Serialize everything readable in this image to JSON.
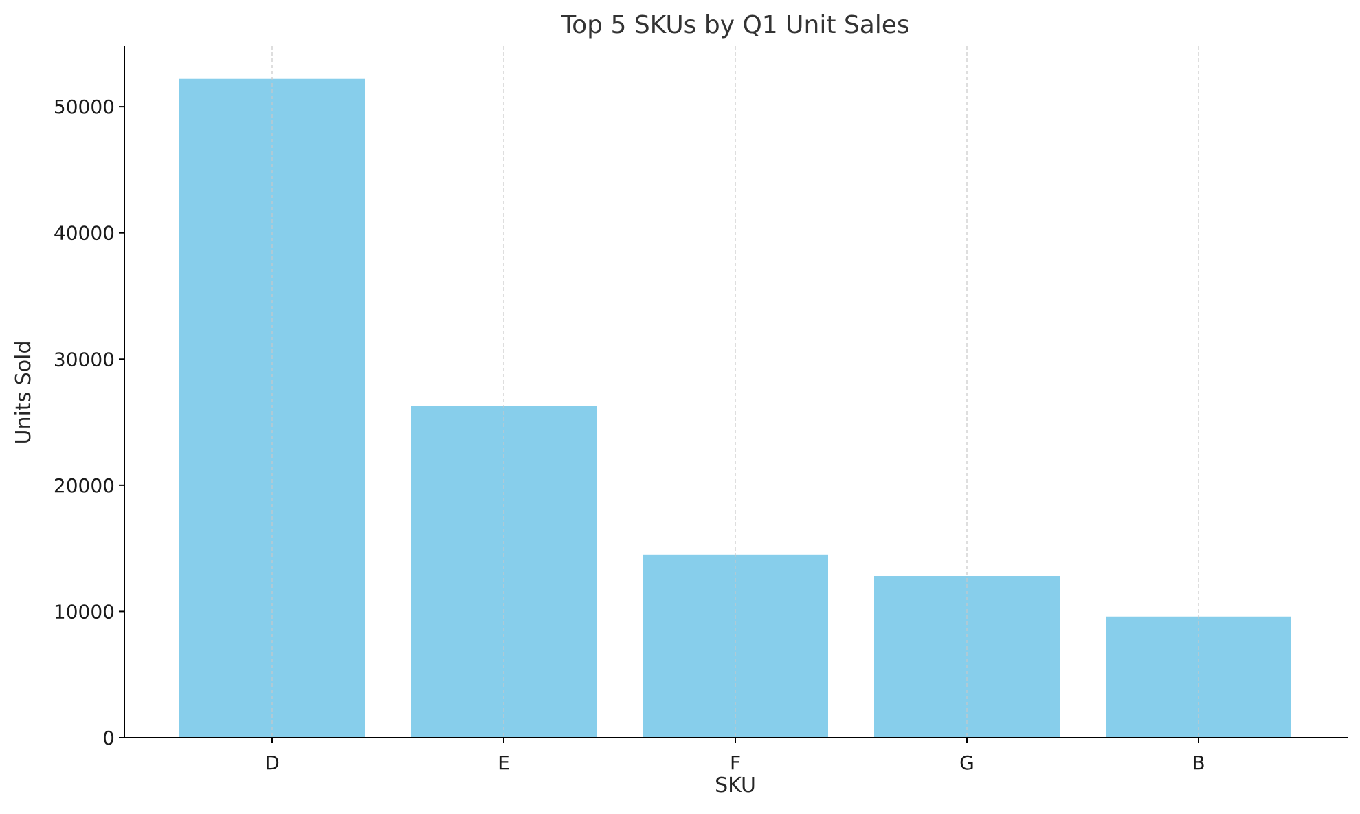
{
  "chart_data": {
    "type": "bar",
    "title": "Top 5 SKUs by Q1 Unit Sales",
    "xlabel": "SKU",
    "ylabel": "Units Sold",
    "categories": [
      "D",
      "E",
      "F",
      "G",
      "B"
    ],
    "values": [
      52200,
      26300,
      14500,
      12800,
      9600
    ],
    "ylim": [
      0,
      54800
    ],
    "yticks": [
      0,
      10000,
      20000,
      30000,
      40000,
      50000
    ],
    "ytick_labels": [
      "0",
      "10000",
      "20000",
      "30000",
      "40000",
      "50000"
    ],
    "grid": "vertical dashed at categories",
    "legend": "none",
    "colors": {
      "bar": "#87CEEB",
      "grid": "#c8c8c8",
      "axis": "#000000"
    }
  }
}
